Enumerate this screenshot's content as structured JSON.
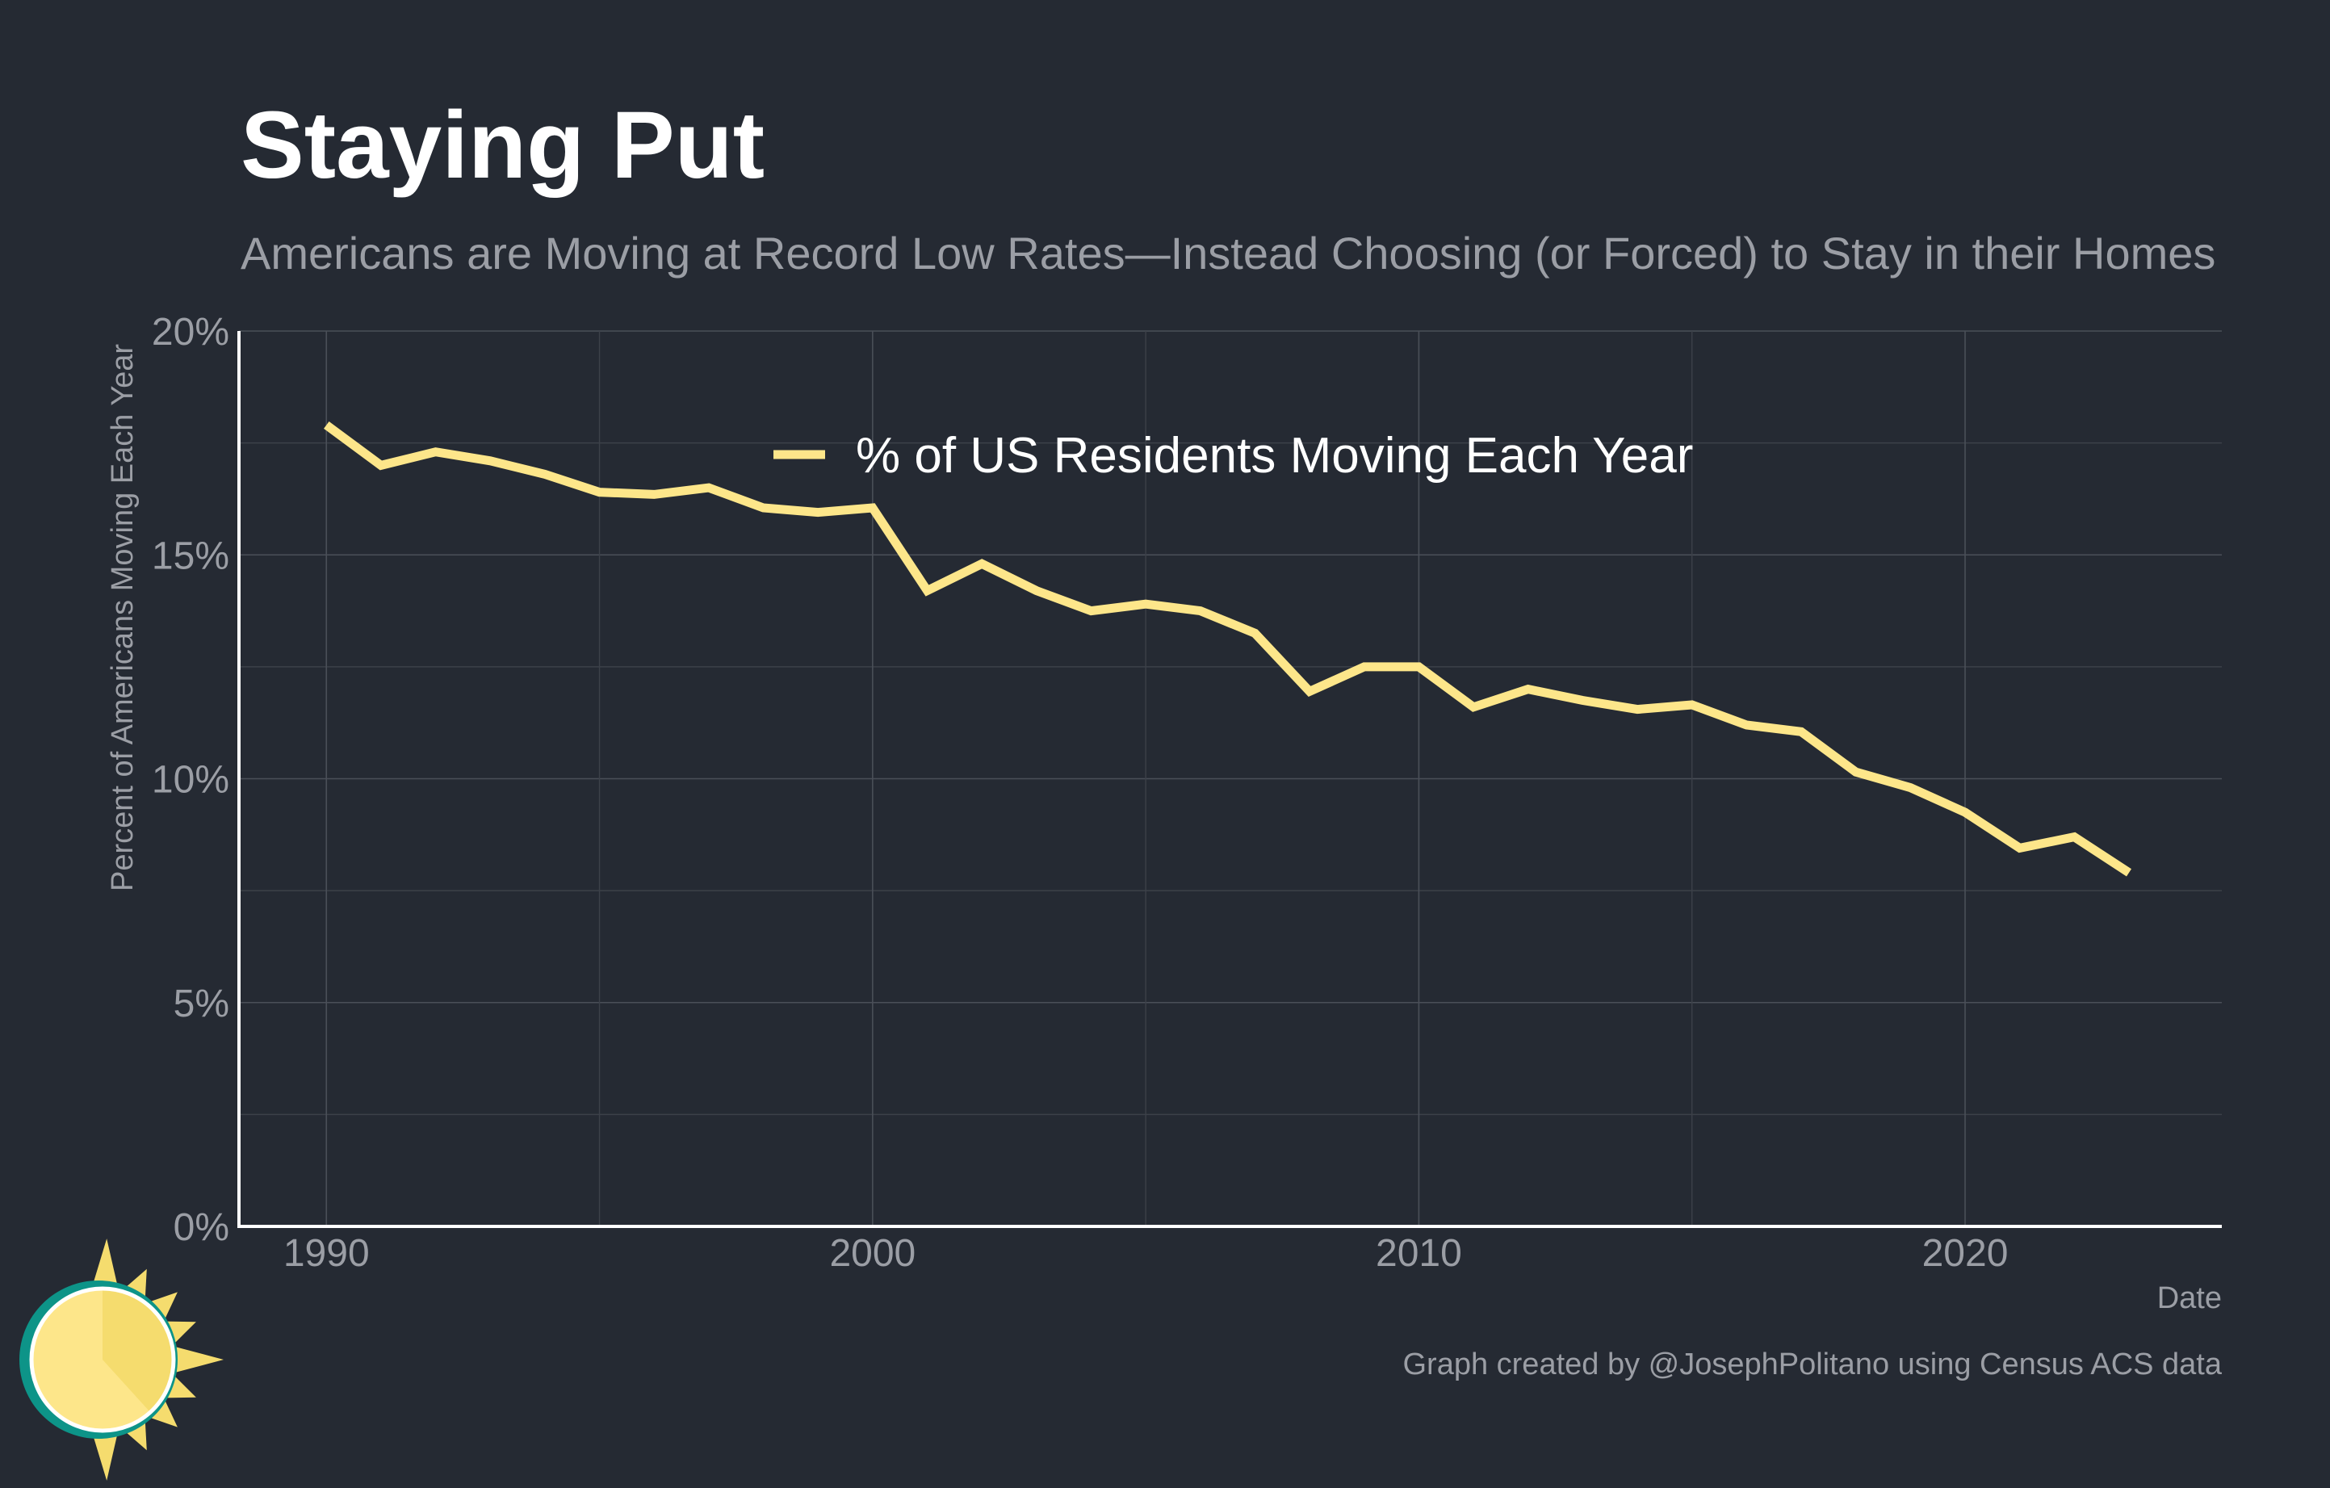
{
  "colors": {
    "background": "#252a33",
    "series": "#fde68a",
    "text_primary": "#ffffff",
    "text_secondary": "#9b9ea5",
    "grid": "#4a4f58",
    "logo_teal": "#0d9488",
    "logo_sun": "#fde68a"
  },
  "logo": {
    "icon": "sun-logo-icon"
  },
  "chart_data": {
    "type": "line",
    "title": "Staying Put",
    "subtitle": "Americans are Moving at Record Low Rates—Instead Choosing (or Forced) to Stay in their Homes",
    "xlabel": "Date",
    "ylabel": "Percent of Americans Moving Each Year",
    "caption": "Graph created by @JosephPolitano using Census ACS data",
    "xlim": [
      1988.4,
      2024.7
    ],
    "ylim": [
      0,
      20
    ],
    "x_ticks": [
      1990,
      2000,
      2010,
      2020
    ],
    "x_tick_labels": [
      "1990",
      "2000",
      "2010",
      "2020"
    ],
    "y_ticks": [
      0,
      5,
      10,
      15,
      20
    ],
    "y_tick_labels": [
      "0%",
      "5%",
      "10%",
      "15%",
      "20%"
    ],
    "grid": true,
    "legend": "top-center",
    "series": [
      {
        "name": "% of US Residents Moving Each Year",
        "x": [
          1990,
          1991,
          1992,
          1993,
          1994,
          1995,
          1996,
          1997,
          1998,
          1999,
          2000,
          2001,
          2002,
          2003,
          2004,
          2005,
          2006,
          2007,
          2008,
          2009,
          2010,
          2011,
          2012,
          2013,
          2014,
          2015,
          2016,
          2017,
          2018,
          2019,
          2020,
          2021,
          2022,
          2023
        ],
        "values": [
          17.9,
          17.0,
          17.3,
          17.1,
          16.8,
          16.4,
          16.35,
          16.5,
          16.05,
          15.95,
          16.05,
          14.2,
          14.8,
          14.2,
          13.75,
          13.9,
          13.75,
          13.25,
          11.95,
          12.5,
          12.5,
          11.6,
          12.0,
          11.75,
          11.55,
          11.65,
          11.2,
          11.05,
          10.15,
          9.8,
          9.25,
          8.45,
          8.7,
          7.9
        ]
      }
    ]
  }
}
